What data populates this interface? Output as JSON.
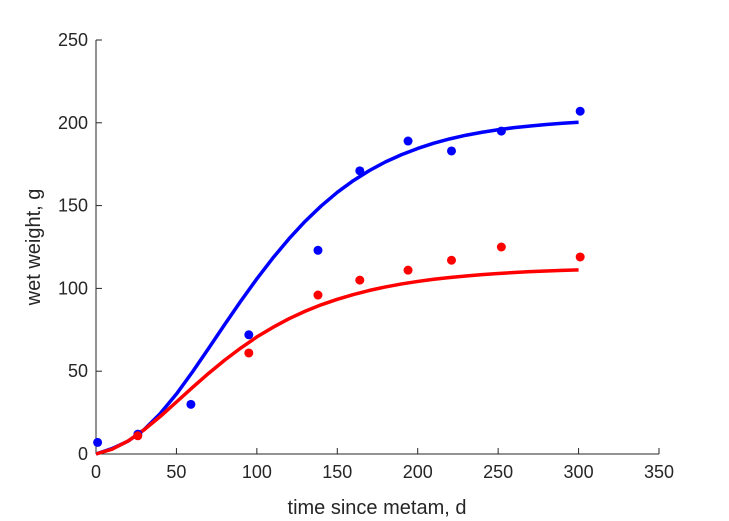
{
  "chart_data": {
    "type": "scatter",
    "title": "",
    "xlabel": "time since metam, d",
    "ylabel": "wet weight, g",
    "xlim": [
      0,
      350
    ],
    "ylim": [
      0,
      250
    ],
    "xticks": [
      0,
      50,
      100,
      150,
      200,
      250,
      300,
      350
    ],
    "yticks": [
      0,
      50,
      100,
      150,
      200,
      250
    ],
    "grid": false,
    "legend": "none",
    "series": [
      {
        "kind": "points",
        "color": "#0000ff",
        "x": [
          1,
          26,
          59,
          95,
          138,
          164,
          194,
          221,
          252,
          301
        ],
        "y": [
          7,
          12,
          30,
          72,
          123,
          171,
          189,
          183,
          195,
          207
        ]
      },
      {
        "kind": "points",
        "color": "#ff0000",
        "x": [
          26,
          95,
          138,
          164,
          194,
          221,
          252,
          301
        ],
        "y": [
          11,
          61,
          96,
          105,
          111,
          117,
          125,
          119
        ]
      },
      {
        "kind": "line",
        "color": "#0000ff",
        "x": [
          0,
          10,
          20,
          30,
          40,
          50,
          60,
          70,
          80,
          90,
          100,
          110,
          120,
          130,
          140,
          150,
          160,
          170,
          180,
          190,
          200,
          210,
          220,
          230,
          240,
          250,
          260,
          270,
          280,
          290,
          300
        ],
        "y": [
          0.0,
          3.3,
          7.8,
          14.8,
          24.5,
          36.2,
          49.6,
          63.8,
          78.2,
          92.3,
          105.8,
          118.4,
          130.0,
          140.5,
          149.8,
          158.0,
          165.1,
          171.2,
          176.4,
          180.8,
          184.5,
          187.7,
          190.3,
          192.5,
          194.3,
          195.8,
          197.1,
          198.1,
          199.0,
          199.7,
          200.3
        ]
      },
      {
        "kind": "line",
        "color": "#ff0000",
        "x": [
          0,
          10,
          20,
          30,
          40,
          50,
          60,
          70,
          80,
          90,
          100,
          110,
          120,
          130,
          140,
          150,
          160,
          170,
          180,
          190,
          200,
          210,
          220,
          230,
          240,
          250,
          260,
          270,
          280,
          290,
          300
        ],
        "y": [
          0.0,
          2.9,
          7.9,
          14.7,
          22.7,
          31.4,
          40.2,
          48.7,
          56.7,
          64.0,
          70.7,
          76.5,
          81.7,
          86.2,
          90.1,
          93.4,
          96.3,
          98.8,
          100.9,
          102.7,
          104.2,
          105.5,
          106.6,
          107.5,
          108.3,
          109.0,
          109.6,
          110.1,
          110.5,
          110.9,
          111.2
        ]
      }
    ]
  }
}
